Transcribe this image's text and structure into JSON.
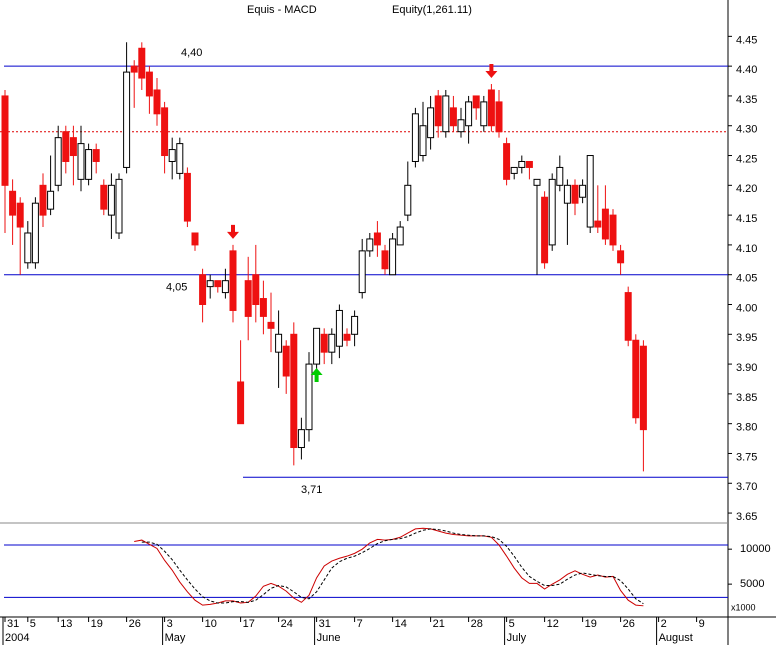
{
  "chart_data": {
    "type": "candlestick",
    "title": "Equis - MACD",
    "subtitle": "Equity(1,261.11)",
    "categories": [
      "31",
      null,
      null,
      "5",
      null,
      null,
      null,
      "13",
      null,
      null,
      null,
      "19",
      null,
      null,
      null,
      null,
      "26",
      null,
      null,
      null,
      null,
      "3",
      null,
      null,
      null,
      null,
      "10",
      null,
      null,
      null,
      null,
      "17",
      null,
      null,
      null,
      null,
      "24",
      null,
      null,
      null,
      null,
      "31",
      null,
      null,
      null,
      null,
      "7",
      null,
      null,
      null,
      null,
      "14",
      null,
      null,
      null,
      null,
      "21",
      null,
      null,
      null,
      null,
      "28",
      null,
      null,
      null,
      null,
      "5",
      null,
      null,
      null,
      null,
      "12",
      null,
      null,
      null,
      null,
      "19",
      null,
      null,
      null,
      null,
      "26",
      null,
      null,
      null,
      null,
      "2",
      null,
      null,
      null,
      null,
      "9",
      null,
      null,
      null
    ],
    "months": [
      "2004",
      null,
      null,
      null,
      null,
      null,
      null,
      null,
      null,
      null,
      null,
      null,
      null,
      null,
      null,
      null,
      null,
      null,
      null,
      null,
      null,
      "May",
      null,
      null,
      null,
      null,
      null,
      null,
      null,
      null,
      null,
      null,
      null,
      null,
      null,
      null,
      null,
      null,
      null,
      null,
      null,
      "June",
      null,
      null,
      null,
      null,
      null,
      null,
      null,
      null,
      null,
      null,
      null,
      null,
      null,
      null,
      null,
      null,
      null,
      null,
      null,
      null,
      null,
      null,
      null,
      null,
      "July",
      null,
      null,
      null,
      null,
      null,
      null,
      null,
      null,
      null,
      null,
      null,
      null,
      null,
      null,
      null,
      null,
      null,
      null,
      null,
      "August",
      null,
      null,
      null,
      null,
      null,
      null,
      null,
      null
    ],
    "open": [
      4.35,
      4.19,
      4.17,
      4.07,
      4.07,
      4.2,
      4.16,
      4.2,
      4.29,
      4.28,
      4.21,
      4.21,
      4.26,
      4.2,
      4.15,
      4.12,
      4.23,
      4.4,
      4.43,
      4.39,
      4.36,
      4.33,
      4.24,
      4.22,
      4.22,
      4.12,
      4.05,
      4.03,
      4.04,
      4.02,
      4.09,
      3.87,
      4.04,
      4.05,
      4.01,
      3.97,
      3.92,
      3.93,
      3.95,
      3.76,
      3.79,
      3.9,
      3.95,
      3.92,
      3.93,
      3.95,
      3.95,
      4.02,
      4.09,
      4.12,
      4.09,
      4.05,
      4.1,
      4.15,
      4.24,
      4.25,
      4.28,
      4.35,
      4.29,
      4.33,
      4.29,
      4.3,
      4.35,
      4.3,
      4.36,
      4.34,
      4.27,
      4.22,
      4.23,
      4.24,
      4.2,
      4.18,
      4.1,
      4.2,
      4.17,
      4.2,
      4.18,
      4.13,
      4.14,
      4.16,
      4.15,
      4.09,
      4.02,
      3.94,
      3.93,
      null,
      null,
      null,
      null,
      null,
      null,
      null,
      null,
      null,
      null
    ],
    "high": [
      4.36,
      4.21,
      4.18,
      4.14,
      4.18,
      4.22,
      4.25,
      4.3,
      4.3,
      4.3,
      4.3,
      4.27,
      4.27,
      4.21,
      4.22,
      4.22,
      4.44,
      4.41,
      4.44,
      4.4,
      4.38,
      4.34,
      4.28,
      4.28,
      4.23,
      4.12,
      4.06,
      4.05,
      4.04,
      4.06,
      4.1,
      3.94,
      4.08,
      4.1,
      4.04,
      4.02,
      3.99,
      3.94,
      3.97,
      3.81,
      3.92,
      3.96,
      3.96,
      3.96,
      4.0,
      3.96,
      3.99,
      4.11,
      4.12,
      4.14,
      4.1,
      4.12,
      4.14,
      4.24,
      4.33,
      4.34,
      4.35,
      4.36,
      4.36,
      4.35,
      4.33,
      4.35,
      4.35,
      4.35,
      4.37,
      4.36,
      4.28,
      4.23,
      4.25,
      4.24,
      4.21,
      4.19,
      4.22,
      4.25,
      4.21,
      4.21,
      4.21,
      4.25,
      4.2,
      4.2,
      4.16,
      4.1,
      4.03,
      3.95,
      3.94,
      null,
      null,
      null,
      null,
      null,
      null,
      null,
      null,
      null,
      null
    ],
    "low": [
      4.12,
      4.1,
      4.05,
      4.06,
      4.06,
      4.13,
      4.15,
      4.19,
      4.22,
      4.2,
      4.19,
      4.2,
      4.22,
      4.15,
      4.11,
      4.11,
      4.22,
      4.33,
      4.36,
      4.32,
      4.3,
      4.22,
      4.21,
      4.21,
      4.13,
      4.09,
      3.97,
      4.01,
      4.02,
      4.01,
      3.97,
      3.8,
      3.94,
      3.97,
      3.95,
      3.92,
      3.86,
      3.85,
      3.73,
      3.74,
      3.77,
      3.88,
      3.9,
      3.9,
      3.91,
      3.93,
      3.93,
      4.01,
      4.08,
      4.08,
      4.05,
      4.05,
      4.1,
      4.14,
      4.23,
      4.24,
      4.26,
      4.28,
      4.28,
      4.29,
      4.28,
      4.27,
      4.31,
      4.29,
      4.29,
      4.28,
      4.2,
      4.21,
      4.22,
      4.21,
      4.05,
      4.06,
      4.09,
      4.19,
      4.1,
      4.15,
      4.17,
      4.12,
      4.12,
      4.1,
      4.09,
      4.05,
      3.93,
      3.8,
      3.72,
      null,
      null,
      null,
      null,
      null,
      null,
      null,
      null,
      null,
      null
    ],
    "close": [
      4.2,
      4.15,
      4.13,
      4.12,
      4.17,
      4.15,
      4.19,
      4.28,
      4.24,
      4.25,
      4.27,
      4.26,
      4.24,
      4.16,
      4.2,
      4.21,
      4.39,
      4.39,
      4.38,
      4.35,
      4.32,
      4.25,
      4.26,
      4.27,
      4.14,
      4.1,
      4.0,
      4.04,
      4.03,
      4.04,
      3.99,
      3.8,
      3.98,
      4.0,
      3.98,
      3.96,
      3.95,
      3.88,
      3.76,
      3.79,
      3.9,
      3.96,
      3.92,
      3.95,
      3.99,
      3.94,
      3.98,
      4.09,
      4.11,
      4.1,
      4.06,
      4.11,
      4.13,
      4.2,
      4.32,
      4.3,
      4.33,
      4.3,
      4.35,
      4.3,
      4.31,
      4.34,
      4.33,
      4.34,
      4.3,
      4.29,
      4.21,
      4.23,
      4.24,
      4.23,
      4.21,
      4.07,
      4.21,
      4.23,
      4.2,
      4.17,
      4.2,
      4.25,
      4.13,
      4.11,
      4.1,
      4.07,
      3.94,
      3.81,
      3.79,
      null,
      null,
      null,
      null,
      null,
      null,
      null,
      null,
      null,
      null
    ],
    "up_color": "#ffffff",
    "down_color": "#ee1111",
    "ylim": [
      3.635,
      4.511
    ],
    "yticks": [
      3.65,
      {
        "value": 3.7,
        "label": "3.70"
      },
      3.75,
      {
        "value": 3.8,
        "label": "3.80"
      },
      3.85,
      {
        "value": 3.9,
        "label": "3.90"
      },
      3.95,
      {
        "value": 4,
        "label": "4.00"
      },
      4.05,
      {
        "value": 4.1,
        "label": "4.10"
      },
      4.15,
      {
        "value": 4.2,
        "label": "4.20"
      },
      4.25,
      {
        "value": 4.3,
        "label": "4.30"
      },
      4.35,
      {
        "value": 4.4,
        "label": "4.40"
      },
      4.45
    ],
    "hlines": [
      {
        "value": 4.4,
        "label": "4,40",
        "color": "#0000cc"
      },
      {
        "value": 4.05,
        "label": "4,05",
        "color": "#0000cc"
      },
      {
        "value": 3.71,
        "label": "3,71",
        "color": "#0000cc"
      }
    ],
    "dotted_line": {
      "value": 4.29,
      "color": "#dd0000"
    },
    "signals": [
      {
        "index": 30,
        "kind": "sell",
        "color": "#ee1111"
      },
      {
        "index": 64,
        "kind": "sell",
        "color": "#ee1111"
      },
      {
        "index": 41,
        "kind": "buy",
        "color": "#00cc00"
      }
    ],
    "indicator": {
      "y2lim": [
        300,
        13600
      ],
      "y2ticks": [
        5000,
        10000
      ],
      "unit_label": "x1000",
      "reference_lines": [
        10600,
        3100
      ],
      "series": [
        {
          "color": "#cc0000",
          "dashed": false,
          "values": [
            null,
            null,
            null,
            null,
            null,
            null,
            null,
            null,
            null,
            null,
            null,
            null,
            null,
            null,
            null,
            null,
            null,
            11100,
            11300,
            10700,
            10100,
            8400,
            7000,
            5300,
            3900,
            2700,
            2000,
            2100,
            2300,
            2600,
            2600,
            2300,
            2400,
            3300,
            4700,
            5100,
            4700,
            4000,
            3000,
            2400,
            3400,
            5900,
            7600,
            8300,
            8700,
            9000,
            9400,
            10000,
            10900,
            11400,
            11300,
            11400,
            11700,
            12300,
            12900,
            13000,
            12900,
            12600,
            12300,
            12100,
            12000,
            11900,
            11900,
            11900,
            11700,
            10600,
            9000,
            7300,
            5900,
            5100,
            5100,
            4300,
            5000,
            5600,
            6400,
            6900,
            6400,
            6000,
            6300,
            6000,
            6100,
            4100,
            2700,
            2000,
            1900,
            null,
            null,
            null,
            null,
            null,
            null,
            null,
            null,
            null,
            null
          ]
        },
        {
          "color": "#000000",
          "dashed": true,
          "values": [
            null,
            null,
            null,
            null,
            null,
            null,
            null,
            null,
            null,
            null,
            null,
            null,
            null,
            null,
            null,
            null,
            null,
            null,
            11000,
            11000,
            10700,
            9700,
            8500,
            7000,
            5600,
            4300,
            3200,
            2600,
            2300,
            2300,
            2500,
            2500,
            2400,
            2700,
            3500,
            4400,
            4800,
            4600,
            3900,
            3100,
            2900,
            3900,
            5600,
            7300,
            8200,
            8700,
            9000,
            9500,
            10100,
            10800,
            11200,
            11400,
            11500,
            11800,
            12300,
            12700,
            12900,
            12800,
            12600,
            12300,
            12100,
            12000,
            11900,
            11900,
            11800,
            11400,
            10400,
            9000,
            7400,
            6100,
            5400,
            4800,
            4800,
            5000,
            5700,
            6300,
            6600,
            6400,
            6200,
            6100,
            6100,
            5500,
            4300,
            2900,
            2200,
            null,
            null,
            null,
            null,
            null,
            null,
            null,
            null,
            null,
            null
          ]
        }
      ]
    }
  }
}
